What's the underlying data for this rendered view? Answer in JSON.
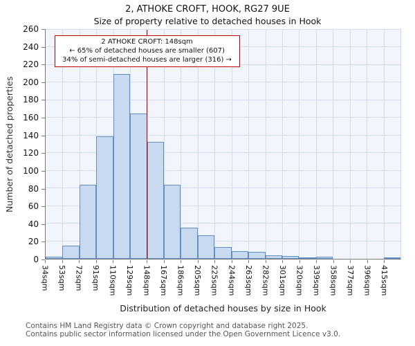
{
  "title": "2, ATHOKE CROFT, HOOK, RG27 9UE",
  "subtitle": "Size of property relative to detached houses in Hook",
  "annotation": {
    "line1": "2 ATHOKE CROFT: 148sqm",
    "line2": "← 65% of detached houses are smaller (607)",
    "line3": "34% of semi-detached houses are larger (316) →"
  },
  "footer": {
    "line1": "Contains HM Land Registry data © Crown copyright and database right 2025.",
    "line2": "Contains public sector information licensed under the Open Government Licence v3.0."
  },
  "chart_data": {
    "type": "bar",
    "title": "2, ATHOKE CROFT, HOOK, RG27 9UE",
    "subtitle": "Size of property relative to detached houses in Hook",
    "categories": [
      "34sqm",
      "53sqm",
      "72sqm",
      "91sqm",
      "110sqm",
      "129sqm",
      "148sqm",
      "167sqm",
      "186sqm",
      "205sqm",
      "225sqm",
      "244sqm",
      "263sqm",
      "282sqm",
      "301sqm",
      "320sqm",
      "339sqm",
      "358sqm",
      "377sqm",
      "396sqm",
      "415sqm"
    ],
    "values": [
      2,
      15,
      84,
      139,
      210,
      165,
      133,
      84,
      35,
      27,
      13,
      9,
      8,
      4,
      3,
      1,
      2,
      0,
      0,
      0,
      1
    ],
    "xlabel": "Distribution of detached houses by size in Hook",
    "ylabel": "Number of detached properties",
    "ylim": [
      0,
      260
    ],
    "ytick_step": 20,
    "grid": true,
    "legend": "none",
    "marker_label": "148sqm",
    "marker_index": 6,
    "bar_fill": "#c9d9f0",
    "bar_border": "#5f8fc4",
    "marker_color": "#bb0000"
  }
}
